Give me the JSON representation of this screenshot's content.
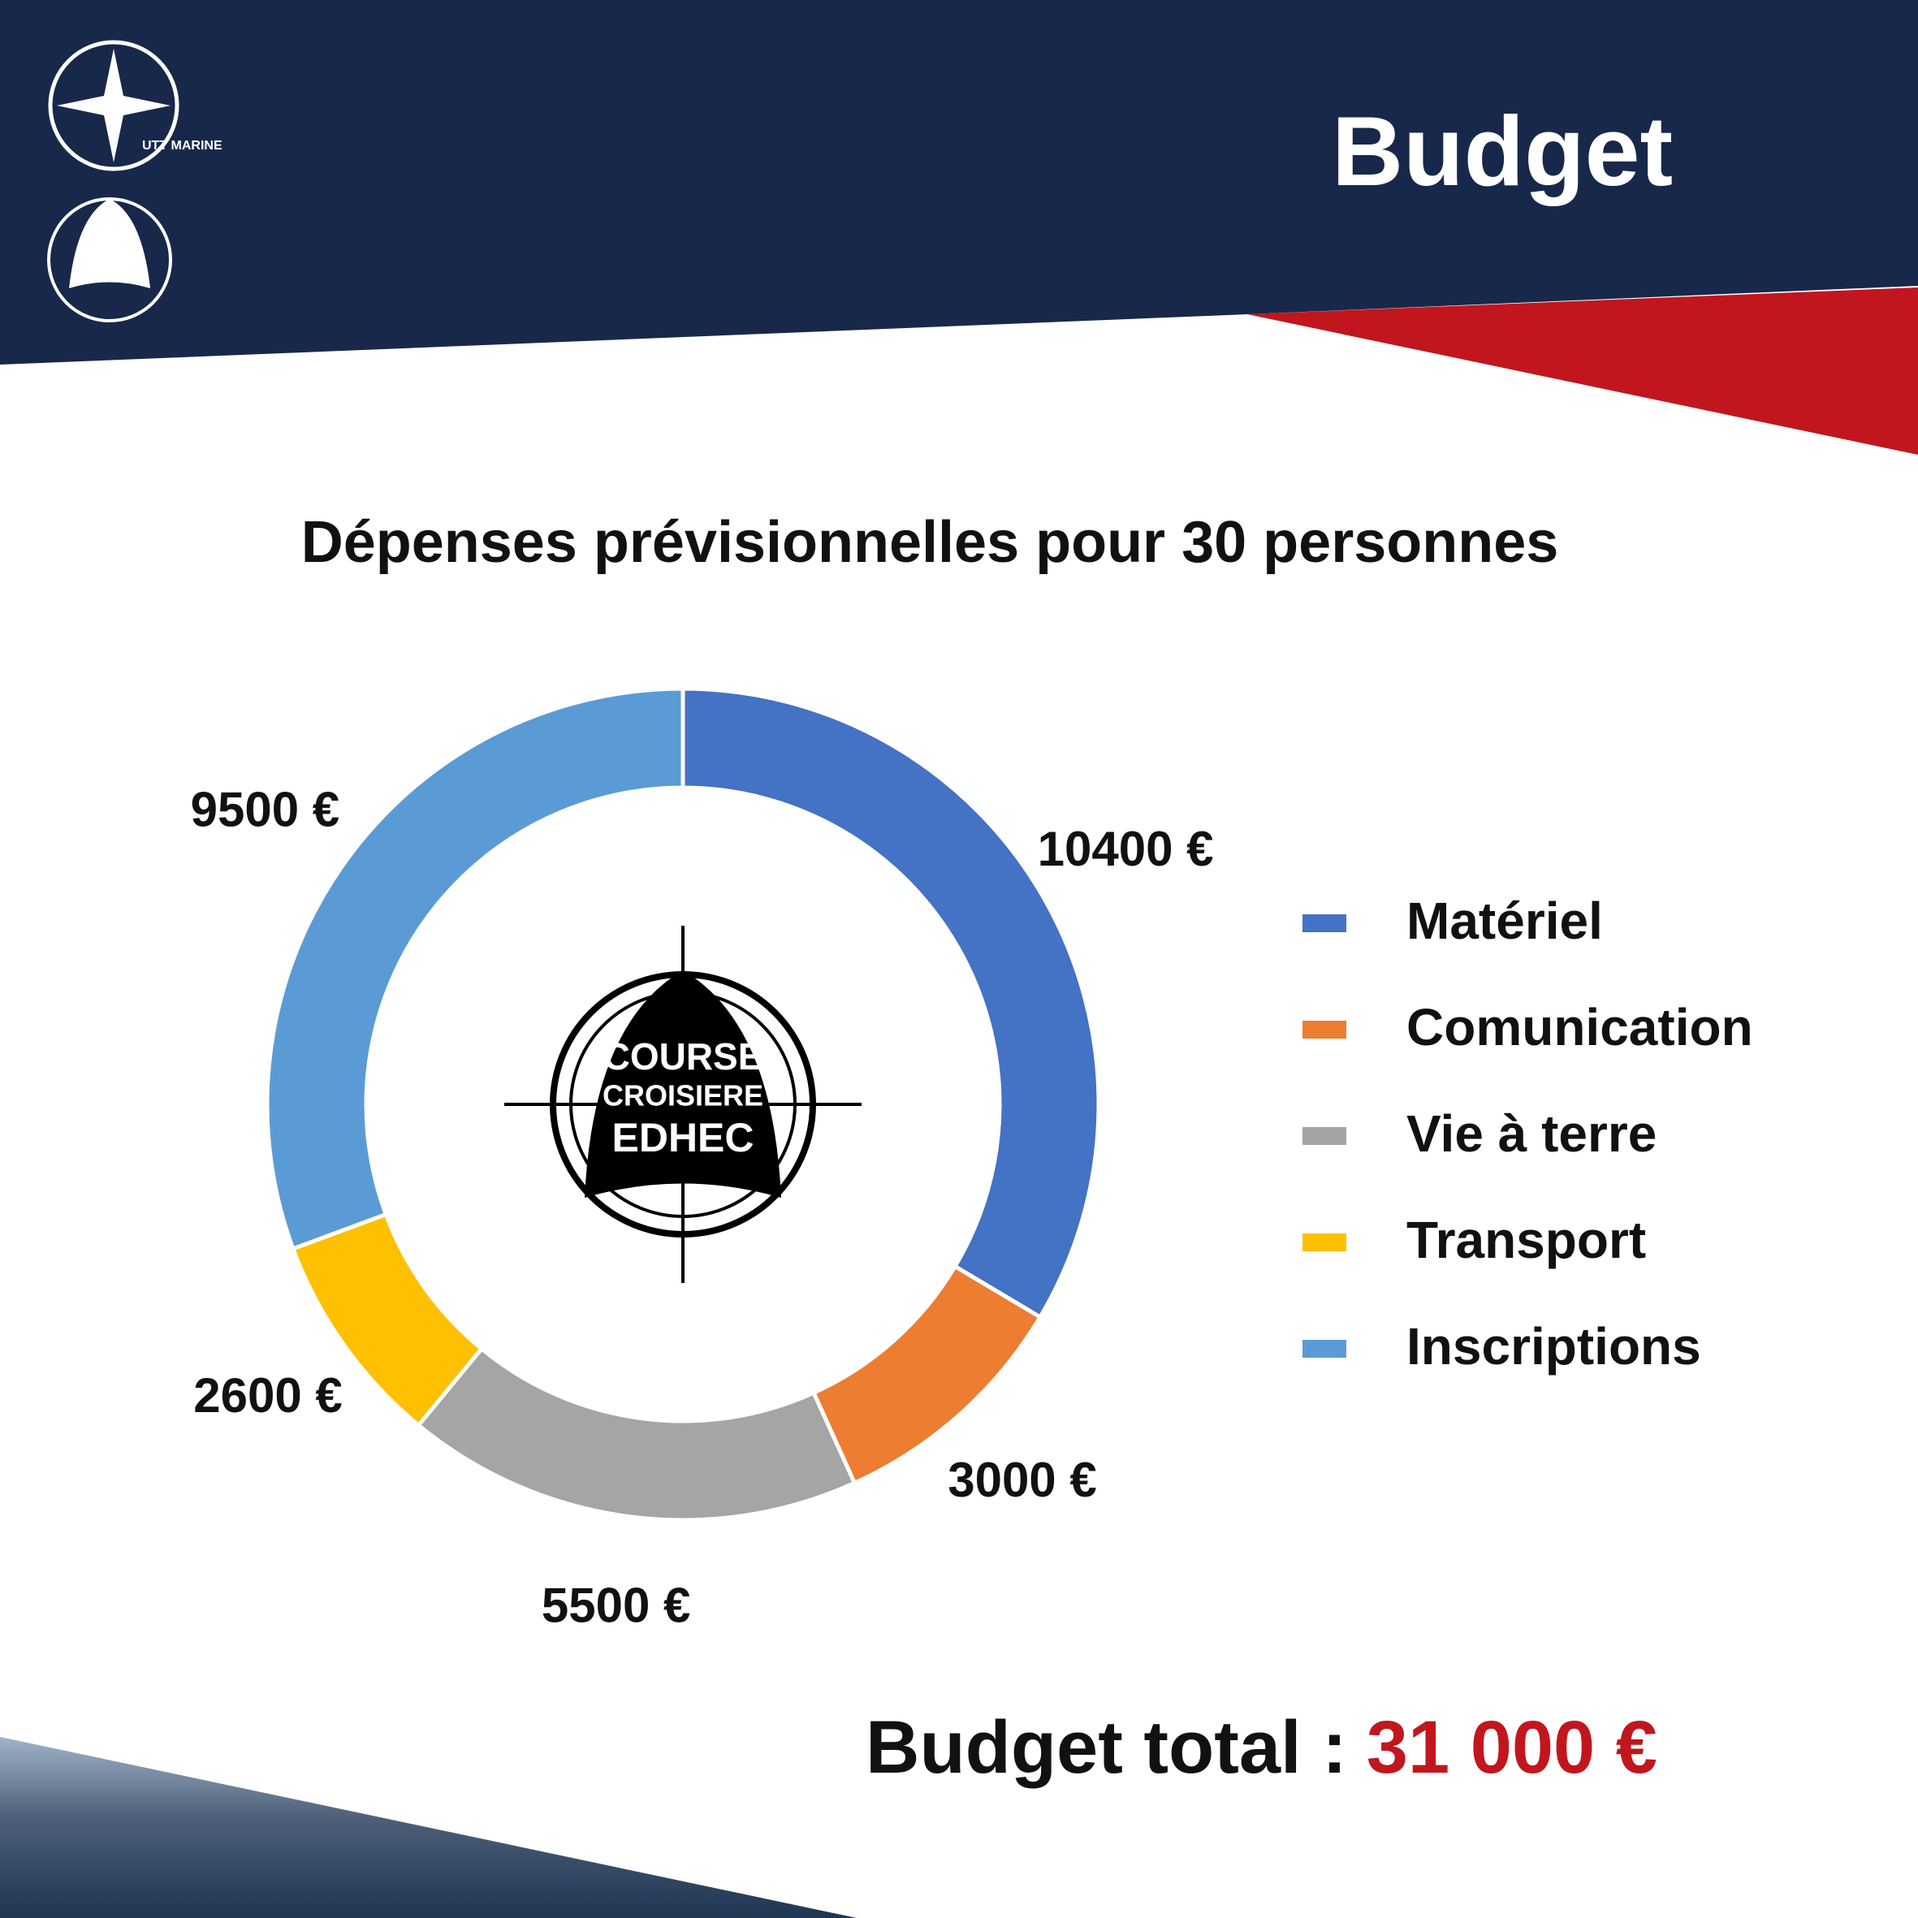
{
  "header": {
    "title": "Budget"
  },
  "logos": {
    "top": "UTT MARINE",
    "emblem": [
      "COURSE",
      "CROISIERE",
      "EDHEC"
    ]
  },
  "chart_data": {
    "type": "donut",
    "title": "Dépenses prévisionnelles pour 30 personnes",
    "categories": [
      "Matériel",
      "Comunication",
      "Vie à terre",
      "Transport",
      "Inscriptions"
    ],
    "values": [
      10400,
      3000,
      5500,
      2600,
      9500
    ],
    "value_labels": [
      "10400 €",
      "3000 €",
      "5500 €",
      "2600 €",
      "9500 €"
    ],
    "colors": [
      "#4472c4",
      "#ed7d31",
      "#a5a5a5",
      "#ffc000",
      "#5b9bd5"
    ],
    "legend": "right"
  },
  "footer": {
    "label": "Budget total :",
    "total": "31 000 €"
  }
}
